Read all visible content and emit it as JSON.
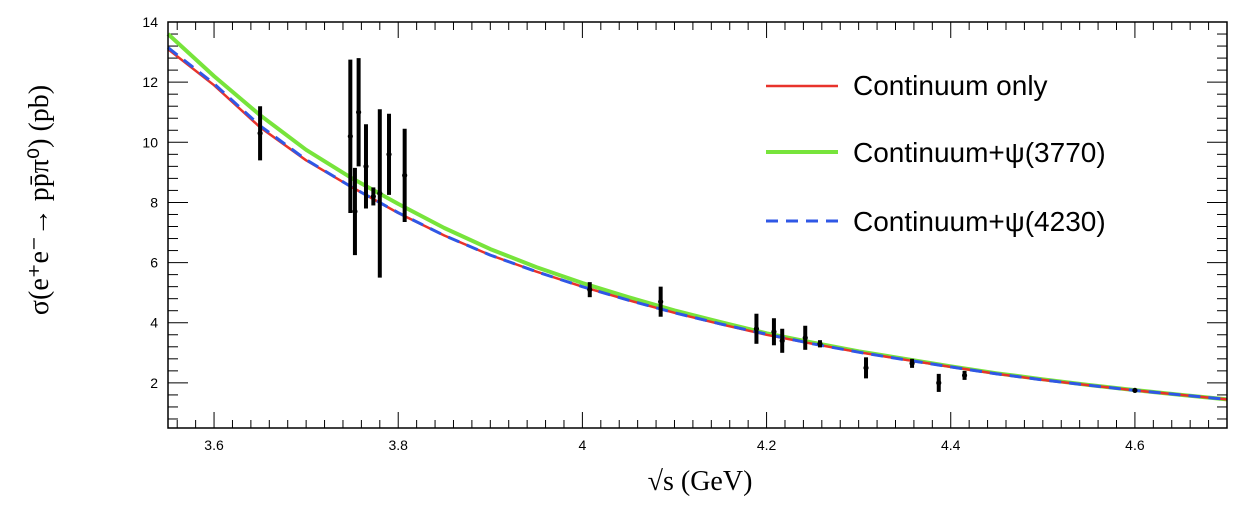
{
  "chart_data": {
    "type": "line",
    "title": "",
    "xlabel": "√s (GeV)",
    "ylabel": "σ(e⁺e⁻→ pp̄π⁰) (pb)",
    "xlim": [
      3.55,
      4.7
    ],
    "ylim": [
      0.5,
      14
    ],
    "x_ticks": [
      3.6,
      3.8,
      4.0,
      4.2,
      4.4,
      4.6
    ],
    "x_tick_labels": [
      "3.6",
      "3.8",
      "4",
      "4.2",
      "4.4",
      "4.6"
    ],
    "y_ticks": [
      2,
      4,
      6,
      8,
      10,
      12,
      14
    ],
    "y_tick_labels": [
      "2",
      "4",
      "6",
      "8",
      "10",
      "12",
      "14"
    ],
    "legend_position": "top-right",
    "series": [
      {
        "name": "Continuum only",
        "color": "#e8332b",
        "style": "solid",
        "x": [
          3.55,
          3.6,
          3.65,
          3.7,
          3.75,
          3.8,
          3.85,
          3.9,
          3.95,
          4.0,
          4.05,
          4.1,
          4.15,
          4.2,
          4.25,
          4.3,
          4.35,
          4.4,
          4.45,
          4.5,
          4.55,
          4.6,
          4.65,
          4.7
        ],
        "y": [
          13.1,
          11.9,
          10.5,
          9.4,
          8.5,
          7.65,
          6.9,
          6.25,
          5.7,
          5.2,
          4.75,
          4.33,
          3.95,
          3.6,
          3.3,
          3.02,
          2.77,
          2.53,
          2.3,
          2.1,
          1.92,
          1.75,
          1.6,
          1.45
        ]
      },
      {
        "name": "Continuum+ψ(3770)",
        "color": "#77e43b",
        "style": "solid",
        "x": [
          3.55,
          3.6,
          3.65,
          3.7,
          3.75,
          3.8,
          3.85,
          3.9,
          3.95,
          4.0,
          4.05,
          4.1,
          4.15,
          4.2,
          4.25,
          4.3,
          4.35,
          4.4,
          4.45,
          4.5,
          4.55,
          4.6,
          4.65,
          4.7
        ],
        "y": [
          13.6,
          12.2,
          10.9,
          9.75,
          8.8,
          7.95,
          7.15,
          6.45,
          5.85,
          5.32,
          4.85,
          4.41,
          4.02,
          3.65,
          3.34,
          3.05,
          2.8,
          2.55,
          2.32,
          2.12,
          1.93,
          1.76,
          1.6,
          1.45
        ]
      },
      {
        "name": "Continuum+ψ(4230)",
        "color": "#2f57e6",
        "style": "dashed",
        "x": [
          3.55,
          3.6,
          3.65,
          3.7,
          3.75,
          3.8,
          3.85,
          3.9,
          3.95,
          4.0,
          4.05,
          4.1,
          4.15,
          4.2,
          4.25,
          4.3,
          4.35,
          4.4,
          4.45,
          4.5,
          4.55,
          4.6,
          4.65,
          4.7
        ],
        "y": [
          13.15,
          11.95,
          10.55,
          9.42,
          8.5,
          7.66,
          6.9,
          6.25,
          5.7,
          5.2,
          4.75,
          4.33,
          3.96,
          3.62,
          3.3,
          3.02,
          2.77,
          2.53,
          2.3,
          2.1,
          1.92,
          1.75,
          1.6,
          1.45
        ]
      }
    ],
    "data_points": {
      "name": "Data",
      "color": "#000000",
      "x": [
        3.65,
        3.748,
        3.753,
        3.757,
        3.765,
        3.773,
        3.78,
        3.79,
        3.807,
        4.008,
        4.085,
        4.189,
        4.208,
        4.217,
        4.242,
        4.258,
        4.308,
        4.358,
        4.387,
        4.415,
        4.6
      ],
      "y": [
        10.3,
        10.2,
        7.7,
        11.0,
        9.2,
        8.2,
        8.3,
        9.6,
        8.9,
        5.1,
        4.7,
        3.8,
        3.7,
        3.4,
        3.5,
        3.3,
        2.5,
        2.65,
        2.0,
        2.25,
        1.75
      ],
      "yerr": [
        0.9,
        2.55,
        1.45,
        1.8,
        1.4,
        0.3,
        2.8,
        1.35,
        1.55,
        0.25,
        0.5,
        0.5,
        0.45,
        0.4,
        0.4,
        0.12,
        0.35,
        0.15,
        0.3,
        0.15,
        0.05
      ]
    }
  }
}
